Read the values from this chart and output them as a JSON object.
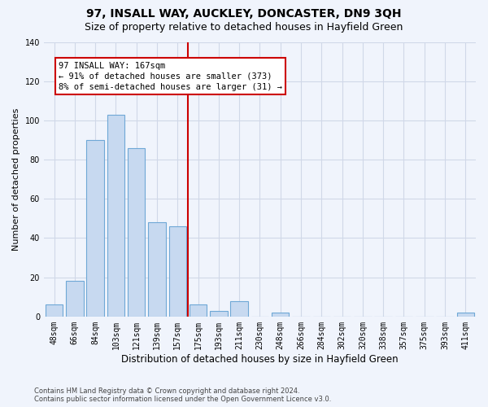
{
  "title": "97, INSALL WAY, AUCKLEY, DONCASTER, DN9 3QH",
  "subtitle": "Size of property relative to detached houses in Hayfield Green",
  "xlabel": "Distribution of detached houses by size in Hayfield Green",
  "ylabel": "Number of detached properties",
  "footer_line1": "Contains HM Land Registry data © Crown copyright and database right 2024.",
  "footer_line2": "Contains public sector information licensed under the Open Government Licence v3.0.",
  "bar_labels": [
    "48sqm",
    "66sqm",
    "84sqm",
    "103sqm",
    "121sqm",
    "139sqm",
    "157sqm",
    "175sqm",
    "193sqm",
    "211sqm",
    "230sqm",
    "248sqm",
    "266sqm",
    "284sqm",
    "302sqm",
    "320sqm",
    "338sqm",
    "357sqm",
    "375sqm",
    "393sqm",
    "411sqm"
  ],
  "bar_values": [
    6,
    18,
    90,
    103,
    86,
    48,
    46,
    6,
    3,
    8,
    0,
    2,
    0,
    0,
    0,
    0,
    0,
    0,
    0,
    0,
    2
  ],
  "bar_color": "#c7d9f0",
  "bar_edge_color": "#6fa8d6",
  "grid_color": "#d0d8e8",
  "background_color": "#f0f4fc",
  "property_line_x": 6.5,
  "property_line_color": "#cc0000",
  "annotation_text": "97 INSALL WAY: 167sqm\n← 91% of detached houses are smaller (373)\n8% of semi-detached houses are larger (31) →",
  "annotation_box_color": "#cc0000",
  "ylim": [
    0,
    140
  ],
  "yticks": [
    0,
    20,
    40,
    60,
    80,
    100,
    120,
    140
  ],
  "title_fontsize": 10,
  "subtitle_fontsize": 9,
  "axis_fontsize": 8,
  "tick_fontsize": 7,
  "annotation_fontsize": 7.5
}
